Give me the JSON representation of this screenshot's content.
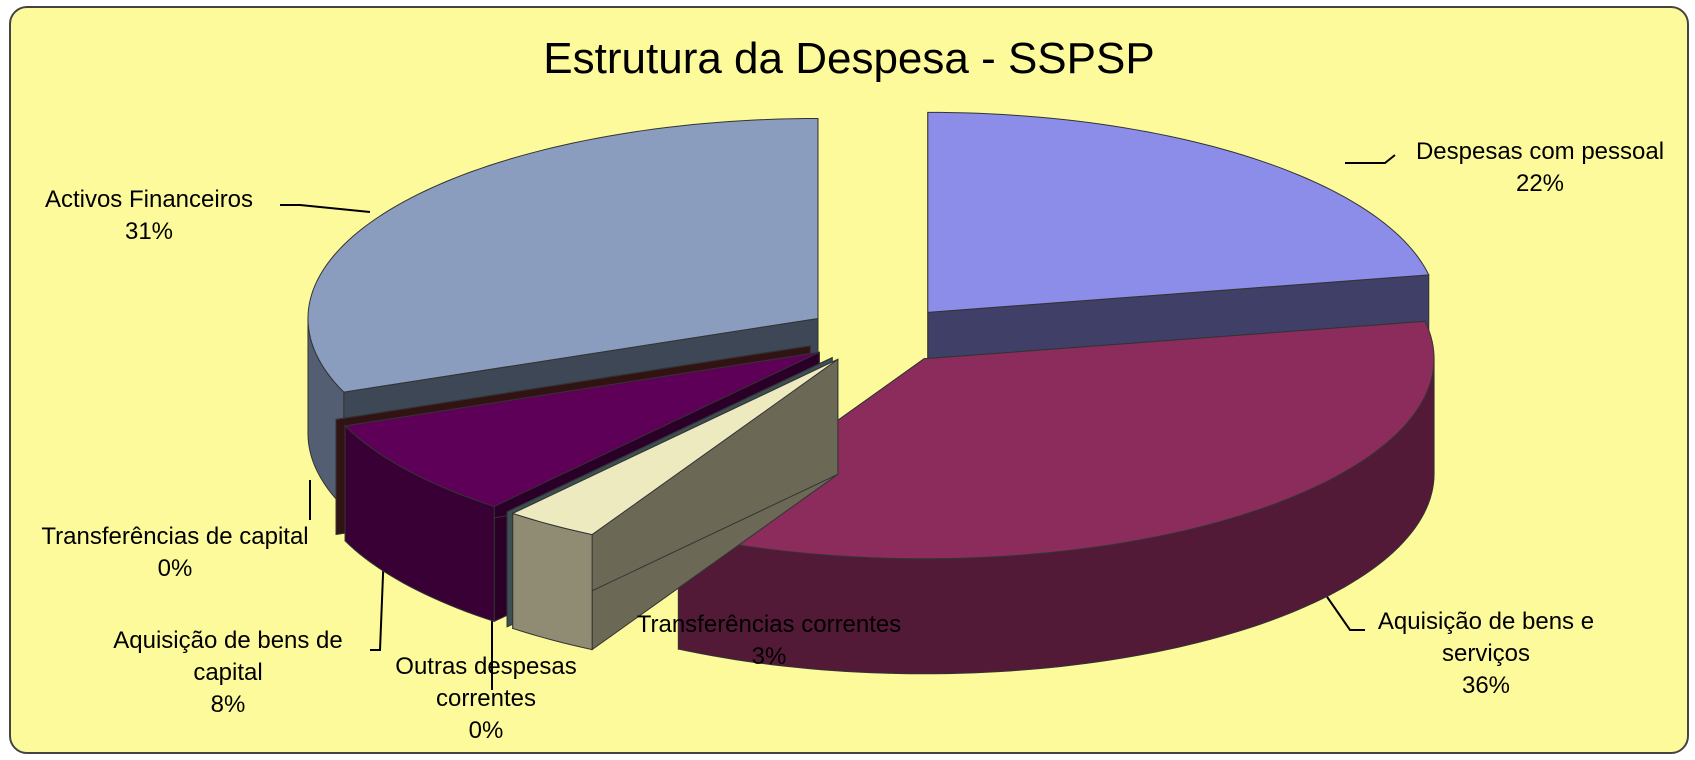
{
  "chart_data": {
    "type": "pie",
    "title": "Estrutura da Despesa - SSPSP",
    "categories": [
      "Despesas com pessoal",
      "Aquisição de bens e serviços",
      "Transferências correntes",
      "Outras despesas correntes",
      "Aquisição de bens de capital",
      "Transferências de capital",
      "Activos Financeiros"
    ],
    "values": [
      22,
      36,
      3,
      0,
      8,
      0,
      31
    ],
    "value_labels": [
      "22%",
      "36%",
      "3%",
      "0%",
      "8%",
      "0%",
      "31%"
    ],
    "colors": [
      "#8b8de8",
      "#8b2c5c",
      "#eeeabf",
      "#8ab0b8",
      "#5e0058",
      "#6d2a2a",
      "#8a9dbf"
    ]
  }
}
